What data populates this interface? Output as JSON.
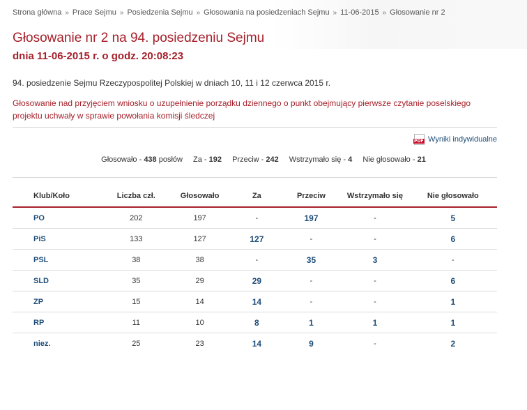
{
  "breadcrumb": [
    "Strona główna",
    "Prace Sejmu",
    "Posiedzenia Sejmu",
    "Głosowania na posiedzeniach Sejmu",
    "11-06-2015",
    "Głosowanie nr 2"
  ],
  "breadcrumb_separator": "»",
  "title": "Głosowanie nr 2 na 94. posiedzeniu Sejmu",
  "subtitle": "dnia 11-06-2015 r. o godz. 20:08:23",
  "meeting": "94. posiedzenie Sejmu Rzeczypospolitej Polskiej w dniach 10, 11 i 12 czerwca 2015 r.",
  "topic": "Głosowanie nad przyjęciem wniosku o uzupełnienie porządku dziennego o punkt obejmujący pierwsze czytanie poselskiego projektu uchwały w sprawie powołania komisji śledczej",
  "pdf_link": {
    "icon": "pdf-icon",
    "icon_text": "PDF",
    "label": "Wyniki indywidualne"
  },
  "summary": {
    "glosowalo_label": "Głosowało - ",
    "glosowalo_value": "438",
    "poslow": " posłów",
    "za_label": "Za - ",
    "za_value": "192",
    "przeciw_label": "Przeciw - ",
    "przeciw_value": "242",
    "wstrzymalo_label": "Wstrzymało się - ",
    "wstrzymalo_value": "4",
    "nie_glosowalo_label": "Nie głosowało - ",
    "nie_glosowalo_value": "21"
  },
  "table": {
    "headers": [
      "Klub/Koło",
      "Liczba czł.",
      "Głosowało",
      "Za",
      "Przeciw",
      "Wstrzymało się",
      "Nie głosowało"
    ],
    "rows": [
      [
        "PO",
        "202",
        "197",
        "-",
        "197",
        "-",
        "5"
      ],
      [
        "PiS",
        "133",
        "127",
        "127",
        "-",
        "-",
        "6"
      ],
      [
        "PSL",
        "38",
        "38",
        "-",
        "35",
        "3",
        "-"
      ],
      [
        "SLD",
        "35",
        "29",
        "29",
        "-",
        "-",
        "6"
      ],
      [
        "ZP",
        "15",
        "14",
        "14",
        "-",
        "-",
        "1"
      ],
      [
        "RP",
        "11",
        "10",
        "8",
        "1",
        "1",
        "1"
      ],
      [
        "niez.",
        "25",
        "23",
        "14",
        "9",
        "-",
        "2"
      ]
    ]
  },
  "colors": {
    "accent": "#a5202a",
    "link": "#1f4e79"
  }
}
